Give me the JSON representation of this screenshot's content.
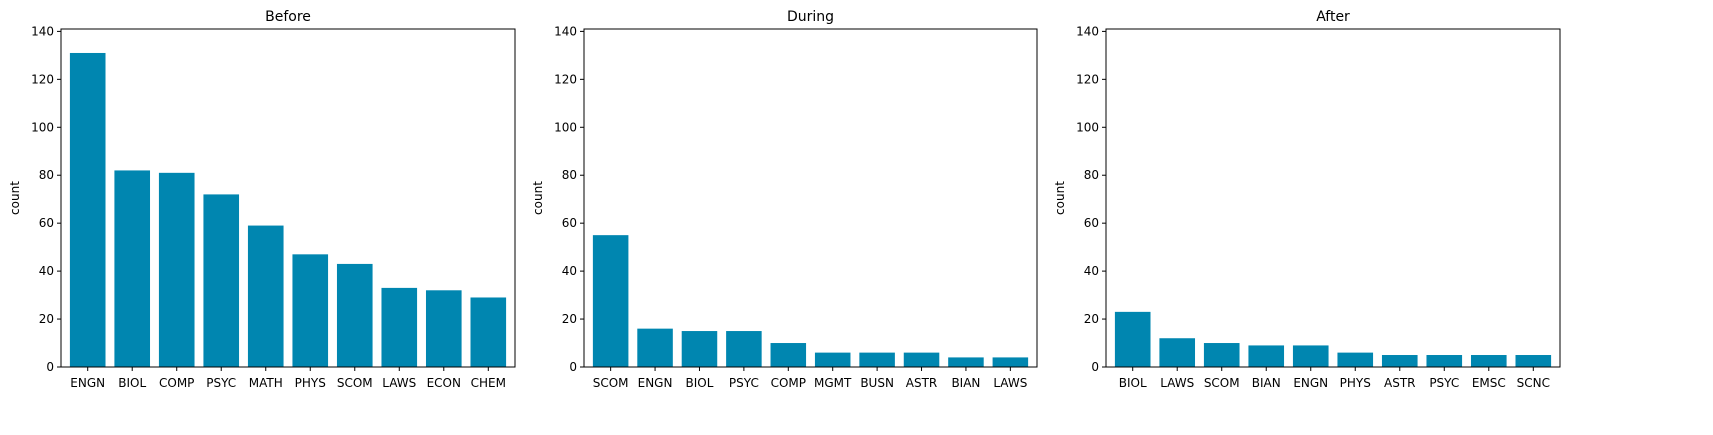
{
  "figure": {
    "bar_color": "#0086b0"
  },
  "chart_data": [
    {
      "type": "bar",
      "title": "Before",
      "xlabel": "",
      "ylabel": "count",
      "ylim": [
        0,
        141
      ],
      "yticks": [
        0,
        20,
        40,
        60,
        80,
        100,
        120,
        140
      ],
      "grid": false,
      "categories": [
        "ENGN",
        "BIOL",
        "COMP",
        "PSYC",
        "MATH",
        "PHYS",
        "SCOM",
        "LAWS",
        "ECON",
        "CHEM"
      ],
      "values": [
        131,
        82,
        81,
        72,
        59,
        47,
        43,
        33,
        32,
        29
      ]
    },
    {
      "type": "bar",
      "title": "During",
      "xlabel": "",
      "ylabel": "count",
      "ylim": [
        0,
        141
      ],
      "yticks": [
        0,
        20,
        40,
        60,
        80,
        100,
        120,
        140
      ],
      "grid": false,
      "categories": [
        "SCOM",
        "ENGN",
        "BIOL",
        "PSYC",
        "COMP",
        "MGMT",
        "BUSN",
        "ASTR",
        "BIAN",
        "LAWS"
      ],
      "values": [
        55,
        16,
        15,
        15,
        10,
        6,
        6,
        6,
        4,
        4
      ]
    },
    {
      "type": "bar",
      "title": "After",
      "xlabel": "",
      "ylabel": "count",
      "ylim": [
        0,
        141
      ],
      "yticks": [
        0,
        20,
        40,
        60,
        80,
        100,
        120,
        140
      ],
      "grid": false,
      "categories": [
        "BIOL",
        "LAWS",
        "SCOM",
        "BIAN",
        "ENGN",
        "PHYS",
        "ASTR",
        "PSYC",
        "EMSC",
        "SCNC"
      ],
      "values": [
        23,
        12,
        10,
        9,
        9,
        6,
        5,
        5,
        5,
        5
      ]
    }
  ]
}
